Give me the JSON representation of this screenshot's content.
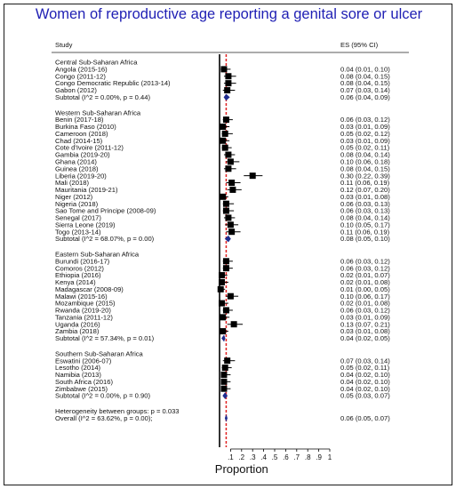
{
  "chart_data": {
    "type": "forest",
    "title": "Women of reproductive age reporting a genital sore or ulcer",
    "column_study": "Study",
    "column_es": "ES (95% CI)",
    "xlabel": "Proportion",
    "xlim": [
      0,
      1
    ],
    "x_ticks": [
      ".1",
      ".2",
      ".3",
      ".4",
      ".5",
      ".6",
      ".7",
      ".8",
      ".9",
      "1"
    ],
    "null_line": 0,
    "overall_line": 0.06,
    "groups": [
      {
        "name": "Central Sub-Saharan Africa",
        "studies": [
          {
            "label": "Angola (2015-16)",
            "es": 0.04,
            "lo": 0.01,
            "hi": 0.1,
            "es_text": "0.04 (0.01, 0.10)"
          },
          {
            "label": "Congo (2011-12)",
            "es": 0.08,
            "lo": 0.04,
            "hi": 0.15,
            "es_text": "0.08 (0.04, 0.15)"
          },
          {
            "label": "Congo Democratic Republic (2013-14)",
            "es": 0.08,
            "lo": 0.04,
            "hi": 0.15,
            "es_text": "0.08 (0.04, 0.15)"
          },
          {
            "label": "Gabon (2012)",
            "es": 0.07,
            "lo": 0.03,
            "hi": 0.14,
            "es_text": "0.07 (0.03, 0.14)"
          }
        ],
        "subtotal": {
          "label": "Subtotal  (I^2 = 0.00%, p = 0.44)",
          "es": 0.06,
          "lo": 0.04,
          "hi": 0.09,
          "es_text": "0.06 (0.04, 0.09)"
        }
      },
      {
        "name": "Western Sub-Saharan Africa",
        "studies": [
          {
            "label": "Benin (2017-18)",
            "es": 0.06,
            "lo": 0.03,
            "hi": 0.12,
            "es_text": "0.06 (0.03, 0.12)"
          },
          {
            "label": "Burkina Faso (2010)",
            "es": 0.03,
            "lo": 0.01,
            "hi": 0.09,
            "es_text": "0.03 (0.01, 0.09)"
          },
          {
            "label": "Cameroon (2018)",
            "es": 0.05,
            "lo": 0.02,
            "hi": 0.12,
            "es_text": "0.05 (0.02, 0.12)"
          },
          {
            "label": "Chad (2014-15)",
            "es": 0.03,
            "lo": 0.01,
            "hi": 0.09,
            "es_text": "0.03 (0.01, 0.09)"
          },
          {
            "label": "Cote d'Ivoire (2011-12)",
            "es": 0.05,
            "lo": 0.02,
            "hi": 0.11,
            "es_text": "0.05 (0.02, 0.11)"
          },
          {
            "label": "Gambia (2019-20)",
            "es": 0.08,
            "lo": 0.04,
            "hi": 0.14,
            "es_text": "0.08 (0.04, 0.14)"
          },
          {
            "label": "Ghana (2014)",
            "es": 0.1,
            "lo": 0.06,
            "hi": 0.18,
            "es_text": "0.10 (0.06, 0.18)"
          },
          {
            "label": "Guinea (2018)",
            "es": 0.08,
            "lo": 0.04,
            "hi": 0.15,
            "es_text": "0.08 (0.04, 0.15)"
          },
          {
            "label": "Liberia (2019-20)",
            "es": 0.3,
            "lo": 0.22,
            "hi": 0.39,
            "es_text": "0.30 (0.22, 0.39)"
          },
          {
            "label": "Mali (2018)",
            "es": 0.11,
            "lo": 0.06,
            "hi": 0.19,
            "es_text": "0.11 (0.06, 0.19)"
          },
          {
            "label": "Mauritania (2019-21)",
            "es": 0.12,
            "lo": 0.07,
            "hi": 0.2,
            "es_text": "0.12 (0.07, 0.20)"
          },
          {
            "label": "Niger (2012)",
            "es": 0.03,
            "lo": 0.01,
            "hi": 0.08,
            "es_text": "0.03 (0.01, 0.08)"
          },
          {
            "label": "Nigeria (2018)",
            "es": 0.06,
            "lo": 0.03,
            "hi": 0.13,
            "es_text": "0.06 (0.03, 0.13)"
          },
          {
            "label": "Sao Tome and Principe (2008-09)",
            "es": 0.06,
            "lo": 0.03,
            "hi": 0.13,
            "es_text": "0.06 (0.03, 0.13)"
          },
          {
            "label": "Senegal (2017)",
            "es": 0.08,
            "lo": 0.04,
            "hi": 0.14,
            "es_text": "0.08 (0.04, 0.14)"
          },
          {
            "label": "Sierra Leone (2019)",
            "es": 0.1,
            "lo": 0.05,
            "hi": 0.17,
            "es_text": "0.10 (0.05, 0.17)"
          },
          {
            "label": "Togo (2013-14)",
            "es": 0.11,
            "lo": 0.06,
            "hi": 0.19,
            "es_text": "0.11 (0.06, 0.19)"
          }
        ],
        "subtotal": {
          "label": "Subtotal  (I^2 = 68.07%, p = 0.00)",
          "es": 0.08,
          "lo": 0.05,
          "hi": 0.1,
          "es_text": "0.08 (0.05, 0.10)"
        }
      },
      {
        "name": "Eastern Sub-Saharan Africa",
        "studies": [
          {
            "label": "Burundi (2016-17)",
            "es": 0.06,
            "lo": 0.03,
            "hi": 0.12,
            "es_text": "0.06 (0.03, 0.12)"
          },
          {
            "label": "Comoros (2012)",
            "es": 0.06,
            "lo": 0.03,
            "hi": 0.12,
            "es_text": "0.06 (0.03, 0.12)"
          },
          {
            "label": "Ethiopia (2016)",
            "es": 0.02,
            "lo": 0.01,
            "hi": 0.07,
            "es_text": "0.02 (0.01, 0.07)"
          },
          {
            "label": "Kenya (2014)",
            "es": 0.02,
            "lo": 0.01,
            "hi": 0.08,
            "es_text": "0.02 (0.01, 0.08)"
          },
          {
            "label": "Madagascar (2008-09)",
            "es": 0.01,
            "lo": 0.0,
            "hi": 0.05,
            "es_text": "0.01 (0.00, 0.05)"
          },
          {
            "label": "Malawi (2015-16)",
            "es": 0.1,
            "lo": 0.06,
            "hi": 0.17,
            "es_text": "0.10 (0.06, 0.17)"
          },
          {
            "label": "Mozambique (2015)",
            "es": 0.02,
            "lo": 0.01,
            "hi": 0.08,
            "es_text": "0.02 (0.01, 0.08)"
          },
          {
            "label": "Rwanda (2019-20)",
            "es": 0.06,
            "lo": 0.03,
            "hi": 0.12,
            "es_text": "0.06 (0.03, 0.12)"
          },
          {
            "label": "Tanzania (2011-12)",
            "es": 0.03,
            "lo": 0.01,
            "hi": 0.09,
            "es_text": "0.03 (0.01, 0.09)"
          },
          {
            "label": "Uganda (2016)",
            "es": 0.13,
            "lo": 0.07,
            "hi": 0.21,
            "es_text": "0.13 (0.07, 0.21)"
          },
          {
            "label": "Zambia (2018)",
            "es": 0.03,
            "lo": 0.01,
            "hi": 0.08,
            "es_text": "0.03 (0.01, 0.08)"
          }
        ],
        "subtotal": {
          "label": "Subtotal  (I^2 = 57.34%, p = 0.01)",
          "es": 0.04,
          "lo": 0.02,
          "hi": 0.05,
          "es_text": "0.04 (0.02, 0.05)"
        }
      },
      {
        "name": "Southern Sub-Saharan Africa",
        "studies": [
          {
            "label": "Eswatini (2006-07)",
            "es": 0.07,
            "lo": 0.03,
            "hi": 0.14,
            "es_text": "0.07 (0.03, 0.14)"
          },
          {
            "label": "Lesotho (2014)",
            "es": 0.05,
            "lo": 0.02,
            "hi": 0.11,
            "es_text": "0.05 (0.02, 0.11)"
          },
          {
            "label": "Namibia (2013)",
            "es": 0.04,
            "lo": 0.02,
            "hi": 0.1,
            "es_text": "0.04 (0.02, 0.10)"
          },
          {
            "label": "South Africa (2016)",
            "es": 0.04,
            "lo": 0.02,
            "hi": 0.1,
            "es_text": "0.04 (0.02, 0.10)"
          },
          {
            "label": "Zimbabwe (2015)",
            "es": 0.04,
            "lo": 0.02,
            "hi": 0.1,
            "es_text": "0.04 (0.02, 0.10)"
          }
        ],
        "subtotal": {
          "label": "Subtotal  (I^2 = 0.00%, p = 0.90)",
          "es": 0.05,
          "lo": 0.03,
          "hi": 0.07,
          "es_text": "0.05 (0.03, 0.07)"
        }
      }
    ],
    "heterogeneity": "Heterogeneity between groups: p = 0.033",
    "overall": {
      "label": "Overall  (I^2 = 63.62%, p = 0.00);",
      "es": 0.06,
      "lo": 0.05,
      "hi": 0.07,
      "es_text": "0.06 (0.05, 0.07)"
    },
    "colors": {
      "title": "#1f1fb4",
      "diamond_fill": "#1f2c8f",
      "overall_line": "#e02020",
      "marker": "#000000"
    }
  }
}
